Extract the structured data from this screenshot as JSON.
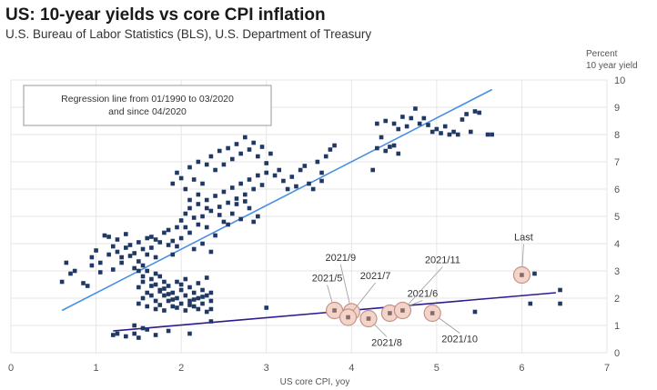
{
  "chart_data": {
    "type": "scatter",
    "title": "US: 10-year yields vs core CPI inflation",
    "subtitle": "U.S. Bureau of Labor Statistics (BLS), U.S. Department of Treasury",
    "xlabel": "US core CPI, yoy",
    "ylabel_line1": "Percent",
    "ylabel_line2": "10 year yield",
    "xlim": [
      0,
      7
    ],
    "ylim": [
      0,
      10
    ],
    "x_ticks": [
      "0",
      "1",
      "2",
      "3",
      "4",
      "5",
      "6",
      "7"
    ],
    "y_ticks": [
      "0",
      "1",
      "2",
      "3",
      "4",
      "5",
      "6",
      "7",
      "8",
      "9",
      "10"
    ],
    "grid": true,
    "legend_box_text": [
      "Regression line from 01/1990 to 03/2020",
      "and since 04/2020"
    ],
    "colors": {
      "points": "#1f3864",
      "regression_pre": "#4a90e2",
      "regression_post": "#2e1a8c",
      "highlight_fill": "#f2d5c8",
      "highlight_stroke": "#c8908a",
      "grid": "#e6e6e6"
    },
    "regression_lines": [
      {
        "period": "01/1990 to 03/2020",
        "x": [
          0.6,
          5.65
        ],
        "y": [
          1.55,
          9.65
        ]
      },
      {
        "period": "since 04/2020",
        "x": [
          1.2,
          6.4
        ],
        "y": [
          0.8,
          2.2
        ]
      }
    ],
    "highlighted_points": [
      {
        "label": "2021/5",
        "x": 3.8,
        "y": 1.55
      },
      {
        "label": "2021/9",
        "x": 4.0,
        "y": 1.5
      },
      {
        "label": "2021/7",
        "x": 3.96,
        "y": 1.3
      },
      {
        "label": "2021/8",
        "x": 4.2,
        "y": 1.25
      },
      {
        "label": "2021/6",
        "x": 4.45,
        "y": 1.45
      },
      {
        "label": "2021/11",
        "x": 4.6,
        "y": 1.55
      },
      {
        "label": "2021/10",
        "x": 4.95,
        "y": 1.45
      },
      {
        "label": "Last",
        "x": 6.0,
        "y": 2.85
      }
    ],
    "points": [
      [
        0.6,
        2.6
      ],
      [
        0.65,
        3.3
      ],
      [
        0.7,
        2.9
      ],
      [
        0.75,
        3.0
      ],
      [
        0.85,
        2.55
      ],
      [
        0.9,
        2.45
      ],
      [
        0.95,
        3.5
      ],
      [
        0.95,
        3.2
      ],
      [
        1.0,
        3.75
      ],
      [
        1.05,
        3.3
      ],
      [
        1.05,
        2.95
      ],
      [
        1.1,
        4.3
      ],
      [
        1.15,
        4.25
      ],
      [
        1.15,
        3.6
      ],
      [
        1.2,
        3.05
      ],
      [
        1.2,
        3.9
      ],
      [
        1.25,
        3.7
      ],
      [
        1.25,
        4.15
      ],
      [
        1.3,
        3.5
      ],
      [
        1.3,
        3.3
      ],
      [
        1.35,
        4.35
      ],
      [
        1.35,
        3.85
      ],
      [
        1.4,
        3.95
      ],
      [
        1.4,
        3.55
      ],
      [
        1.45,
        3.1
      ],
      [
        1.45,
        3.65
      ],
      [
        1.5,
        3.35
      ],
      [
        1.5,
        3.0
      ],
      [
        1.5,
        4.05
      ],
      [
        1.55,
        3.8
      ],
      [
        1.55,
        3.2
      ],
      [
        1.6,
        4.2
      ],
      [
        1.6,
        3.6
      ],
      [
        1.65,
        4.25
      ],
      [
        1.65,
        3.85
      ],
      [
        1.7,
        3.5
      ],
      [
        1.7,
        4.15
      ],
      [
        1.75,
        4.05
      ],
      [
        1.8,
        4.4
      ],
      [
        1.85,
        3.95
      ],
      [
        1.85,
        4.5
      ],
      [
        1.9,
        4.1
      ],
      [
        1.95,
        4.6
      ],
      [
        2.0,
        4.85
      ],
      [
        2.05,
        5.1
      ],
      [
        2.1,
        5.3
      ],
      [
        2.15,
        4.95
      ],
      [
        2.2,
        5.45
      ],
      [
        2.25,
        5.0
      ],
      [
        2.3,
        5.6
      ],
      [
        2.35,
        5.2
      ],
      [
        2.4,
        5.75
      ],
      [
        2.45,
        5.35
      ],
      [
        2.5,
        5.9
      ],
      [
        2.55,
        5.5
      ],
      [
        2.6,
        6.05
      ],
      [
        2.65,
        5.65
      ],
      [
        2.7,
        6.2
      ],
      [
        2.75,
        5.8
      ],
      [
        2.8,
        6.35
      ],
      [
        2.85,
        6.0
      ],
      [
        2.9,
        6.5
      ],
      [
        2.95,
        6.15
      ],
      [
        3.0,
        6.6
      ],
      [
        1.9,
        6.2
      ],
      [
        1.95,
        6.6
      ],
      [
        2.0,
        6.4
      ],
      [
        2.05,
        6.0
      ],
      [
        2.1,
        6.8
      ],
      [
        2.15,
        6.35
      ],
      [
        2.2,
        7.0
      ],
      [
        2.25,
        6.2
      ],
      [
        2.3,
        6.9
      ],
      [
        2.35,
        7.2
      ],
      [
        2.4,
        6.7
      ],
      [
        2.45,
        7.4
      ],
      [
        2.5,
        6.9
      ],
      [
        2.55,
        7.5
      ],
      [
        2.6,
        7.1
      ],
      [
        2.65,
        7.65
      ],
      [
        2.7,
        7.3
      ],
      [
        2.75,
        7.9
      ],
      [
        2.8,
        7.45
      ],
      [
        2.85,
        7.7
      ],
      [
        2.9,
        7.2
      ],
      [
        2.95,
        7.55
      ],
      [
        3.0,
        6.95
      ],
      [
        3.05,
        7.3
      ],
      [
        3.1,
        6.5
      ],
      [
        3.15,
        6.7
      ],
      [
        3.2,
        6.3
      ],
      [
        3.25,
        6.0
      ],
      [
        3.3,
        6.45
      ],
      [
        3.4,
        6.7
      ],
      [
        3.5,
        6.2
      ],
      [
        3.55,
        6.0
      ],
      [
        3.6,
        7.0
      ],
      [
        3.65,
        6.6
      ],
      [
        3.7,
        7.2
      ],
      [
        3.75,
        7.45
      ],
      [
        3.8,
        7.6
      ],
      [
        3.65,
        6.3
      ],
      [
        3.45,
        6.85
      ],
      [
        3.35,
        6.1
      ],
      [
        2.1,
        5.6
      ],
      [
        2.2,
        5.8
      ],
      [
        2.3,
        4.6
      ],
      [
        2.4,
        4.3
      ],
      [
        2.5,
        4.8
      ],
      [
        2.6,
        5.1
      ],
      [
        2.7,
        4.9
      ],
      [
        2.8,
        5.3
      ],
      [
        2.9,
        5.0
      ],
      [
        2.0,
        4.2
      ],
      [
        1.95,
        3.9
      ],
      [
        1.9,
        3.6
      ],
      [
        2.1,
        4.4
      ],
      [
        2.15,
        3.8
      ],
      [
        2.25,
        4.0
      ],
      [
        2.35,
        3.7
      ],
      [
        2.2,
        4.7
      ],
      [
        2.05,
        4.6
      ],
      [
        2.3,
        5.3
      ],
      [
        2.45,
        5.05
      ],
      [
        2.55,
        4.7
      ],
      [
        2.65,
        5.45
      ],
      [
        2.75,
        5.55
      ],
      [
        2.85,
        4.8
      ],
      [
        4.3,
        8.4
      ],
      [
        4.4,
        8.5
      ],
      [
        4.5,
        8.4
      ],
      [
        4.55,
        8.2
      ],
      [
        4.65,
        8.3
      ],
      [
        4.7,
        8.6
      ],
      [
        4.75,
        8.95
      ],
      [
        4.85,
        8.6
      ],
      [
        4.9,
        8.35
      ],
      [
        4.95,
        8.1
      ],
      [
        5.0,
        8.2
      ],
      [
        5.1,
        8.3
      ],
      [
        5.15,
        8.0
      ],
      [
        5.2,
        8.1
      ],
      [
        5.3,
        8.55
      ],
      [
        5.35,
        8.75
      ],
      [
        5.45,
        8.85
      ],
      [
        5.5,
        8.8
      ],
      [
        5.6,
        8.0
      ],
      [
        5.65,
        8.0
      ],
      [
        4.3,
        7.5
      ],
      [
        4.4,
        7.4
      ],
      [
        4.5,
        7.6
      ],
      [
        4.55,
        7.3
      ],
      [
        4.25,
        6.7
      ],
      [
        4.35,
        7.9
      ],
      [
        4.6,
        8.65
      ],
      [
        4.8,
        8.4
      ],
      [
        5.05,
        8.05
      ],
      [
        5.25,
        8.0
      ],
      [
        5.4,
        8.1
      ],
      [
        4.45,
        7.55
      ],
      [
        1.6,
        3.0
      ],
      [
        1.65,
        2.7
      ],
      [
        1.7,
        2.9
      ],
      [
        1.7,
        2.5
      ],
      [
        1.75,
        2.8
      ],
      [
        1.75,
        2.3
      ],
      [
        1.8,
        2.6
      ],
      [
        1.8,
        2.1
      ],
      [
        1.85,
        2.45
      ],
      [
        1.85,
        1.9
      ],
      [
        1.9,
        2.2
      ],
      [
        1.9,
        1.7
      ],
      [
        1.95,
        2.0
      ],
      [
        1.95,
        2.6
      ],
      [
        2.0,
        2.3
      ],
      [
        2.0,
        1.8
      ],
      [
        2.05,
        2.1
      ],
      [
        2.05,
        2.7
      ],
      [
        2.1,
        1.9
      ],
      [
        2.1,
        2.4
      ],
      [
        2.15,
        1.7
      ],
      [
        2.15,
        2.2
      ],
      [
        2.2,
        2.0
      ],
      [
        2.2,
        1.6
      ],
      [
        2.25,
        2.3
      ],
      [
        2.25,
        1.8
      ],
      [
        2.3,
        1.5
      ],
      [
        2.3,
        2.1
      ],
      [
        2.35,
        1.9
      ],
      [
        2.35,
        1.6
      ],
      [
        1.6,
        2.2
      ],
      [
        1.55,
        2.0
      ],
      [
        1.5,
        1.8
      ],
      [
        1.5,
        2.4
      ],
      [
        1.55,
        2.8
      ],
      [
        1.6,
        1.7
      ],
      [
        1.65,
        2.1
      ],
      [
        1.65,
        2.45
      ],
      [
        1.7,
        1.9
      ],
      [
        1.7,
        1.6
      ],
      [
        1.75,
        2.25
      ],
      [
        1.75,
        1.75
      ],
      [
        1.8,
        2.35
      ],
      [
        1.8,
        1.55
      ],
      [
        1.85,
        2.15
      ],
      [
        1.9,
        1.95
      ],
      [
        1.95,
        1.65
      ],
      [
        2.0,
        2.5
      ],
      [
        2.05,
        1.55
      ],
      [
        2.1,
        1.75
      ],
      [
        2.15,
        1.95
      ],
      [
        2.2,
        2.55
      ],
      [
        2.25,
        2.05
      ],
      [
        2.3,
        2.75
      ],
      [
        2.35,
        2.2
      ],
      [
        1.55,
        2.6
      ],
      [
        1.2,
        0.65
      ],
      [
        1.25,
        0.7
      ],
      [
        1.35,
        0.6
      ],
      [
        1.45,
        0.7
      ],
      [
        1.5,
        0.55
      ],
      [
        1.55,
        0.9
      ],
      [
        1.6,
        0.85
      ],
      [
        1.7,
        0.65
      ],
      [
        1.45,
        1.0
      ],
      [
        2.1,
        0.7
      ],
      [
        2.35,
        1.15
      ],
      [
        1.85,
        0.8
      ],
      [
        3.0,
        1.65
      ],
      [
        5.45,
        1.5
      ],
      [
        6.1,
        1.8
      ],
      [
        6.45,
        1.8
      ],
      [
        6.45,
        2.3
      ],
      [
        6.15,
        2.9
      ]
    ]
  }
}
